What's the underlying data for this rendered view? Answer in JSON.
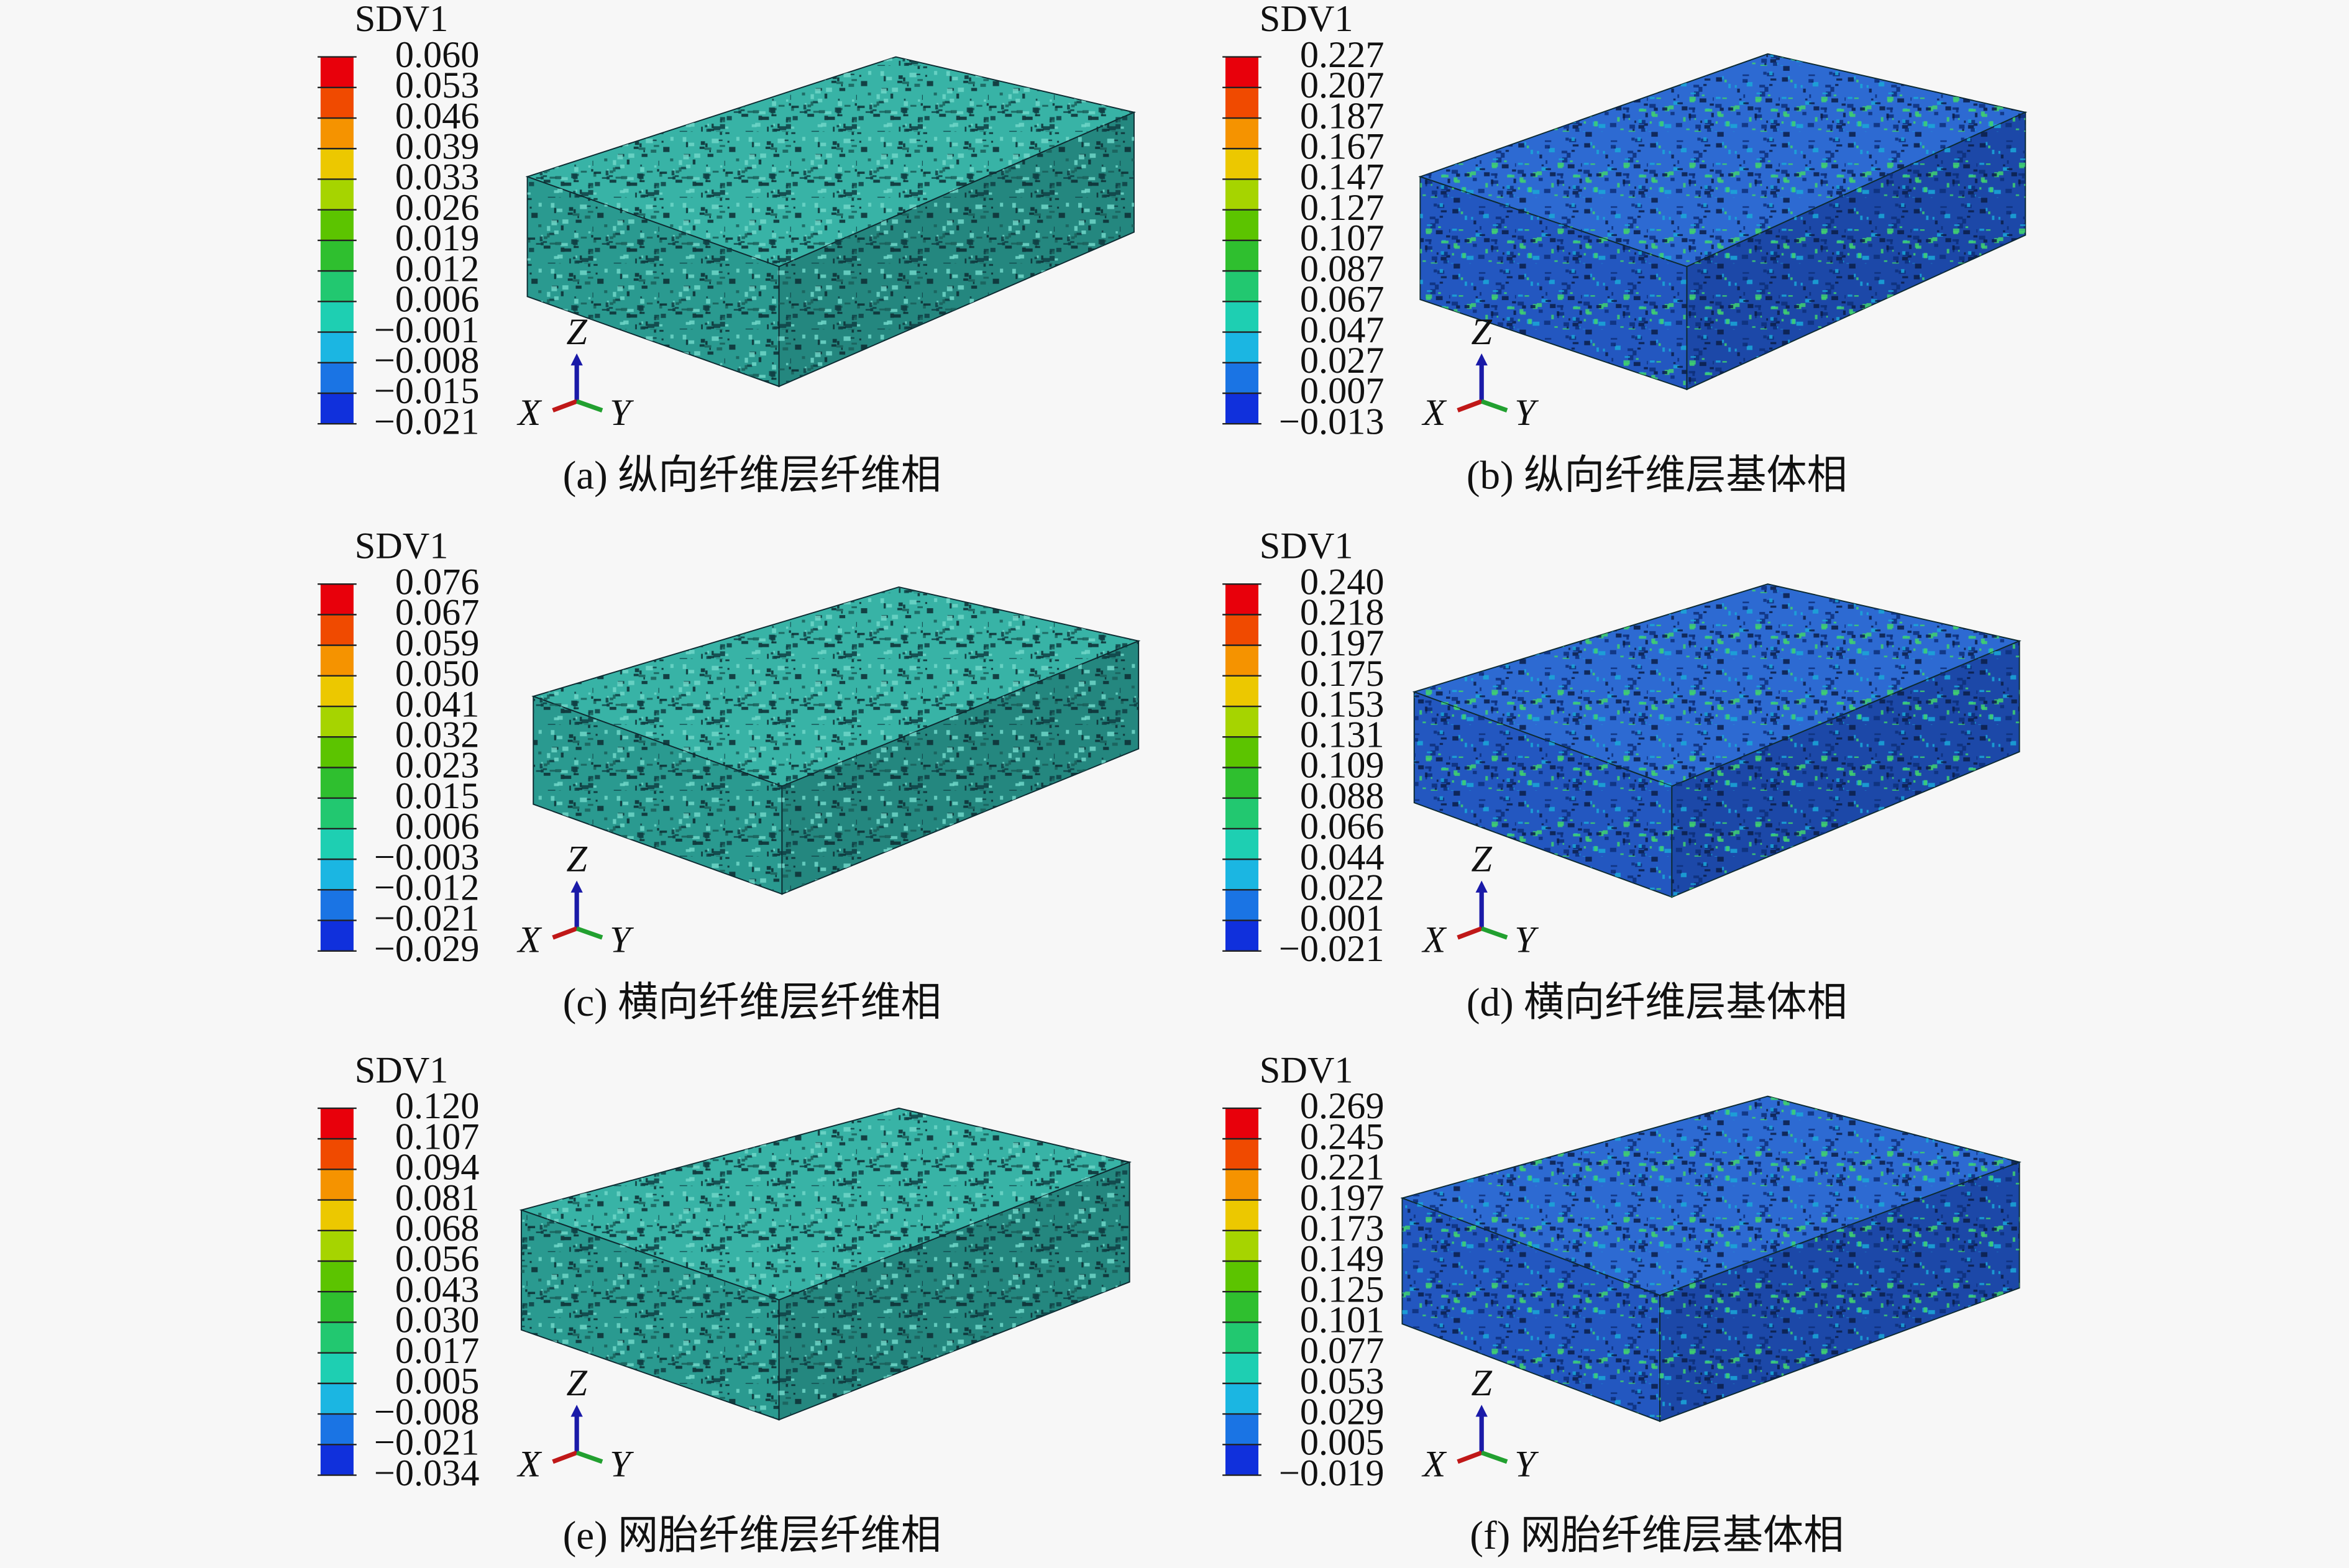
{
  "panels": [
    {
      "legend_title": "SDV1",
      "legend_labels": [
        "0.060",
        "0.053",
        "0.046",
        "0.039",
        "0.033",
        "0.026",
        "0.019",
        "0.012",
        "0.006",
        "−0.001",
        "−0.008",
        "−0.015",
        "−0.021"
      ],
      "axes": {
        "z": "Z",
        "x": "X",
        "y": "Y"
      },
      "caption": "(a) 纵向纤维层纤维相"
    },
    {
      "legend_title": "SDV1",
      "legend_labels": [
        "0.227",
        "0.207",
        "0.187",
        "0.167",
        "0.147",
        "0.127",
        "0.107",
        "0.087",
        "0.067",
        "0.047",
        "0.027",
        "0.007",
        "−0.013"
      ],
      "axes": {
        "z": "Z",
        "x": "X",
        "y": "Y"
      },
      "caption": "(b) 纵向纤维层基体相"
    },
    {
      "legend_title": "SDV1",
      "legend_labels": [
        "0.076",
        "0.067",
        "0.059",
        "0.050",
        "0.041",
        "0.032",
        "0.023",
        "0.015",
        "0.006",
        "−0.003",
        "−0.012",
        "−0.021",
        "−0.029"
      ],
      "axes": {
        "z": "Z",
        "x": "X",
        "y": "Y"
      },
      "caption": "(c) 横向纤维层纤维相"
    },
    {
      "legend_title": "SDV1",
      "legend_labels": [
        "0.240",
        "0.218",
        "0.197",
        "0.175",
        "0.153",
        "0.131",
        "0.109",
        "0.088",
        "0.066",
        "0.044",
        "0.022",
        "0.001",
        "−0.021"
      ],
      "axes": {
        "z": "Z",
        "x": "X",
        "y": "Y"
      },
      "caption": "(d) 横向纤维层基体相"
    },
    {
      "legend_title": "SDV1",
      "legend_labels": [
        "0.120",
        "0.107",
        "0.094",
        "0.081",
        "0.068",
        "0.056",
        "0.043",
        "0.030",
        "0.017",
        "0.005",
        "−0.008",
        "−0.021",
        "−0.034"
      ],
      "axes": {
        "z": "Z",
        "x": "X",
        "y": "Y"
      },
      "caption": "(e) 网胎纤维层纤维相"
    },
    {
      "legend_title": "SDV1",
      "legend_labels": [
        "0.269",
        "0.245",
        "0.221",
        "0.197",
        "0.173",
        "0.149",
        "0.125",
        "0.101",
        "0.077",
        "0.053",
        "0.029",
        "0.005",
        "−0.019"
      ],
      "axes": {
        "z": "Z",
        "x": "X",
        "y": "Y"
      },
      "caption": "(f) 网胎纤维层基体相"
    }
  ]
}
